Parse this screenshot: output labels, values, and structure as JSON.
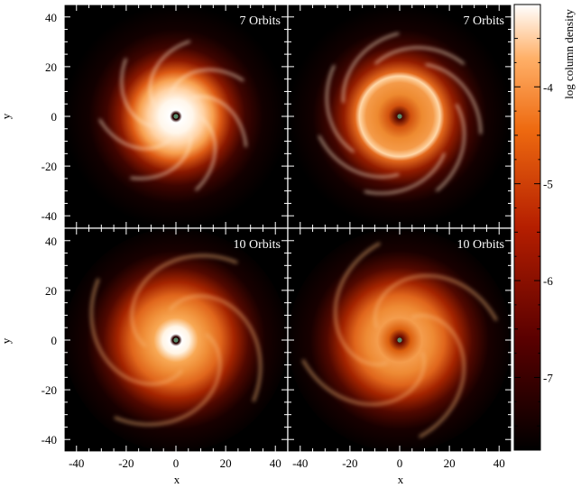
{
  "figure": {
    "panels": [
      {
        "label": "7 Orbits",
        "variant": "ring-bright-center"
      },
      {
        "label": "7 Orbits",
        "variant": "ring-dim-center"
      },
      {
        "label": "10 Orbits",
        "variant": "spiral-bright-center"
      },
      {
        "label": "10 Orbits",
        "variant": "spiral-dim-center"
      }
    ],
    "x_axis": {
      "label": "x",
      "ticks": [
        "-40",
        "-20",
        "0",
        "20",
        "40"
      ],
      "range": [
        -45,
        45
      ]
    },
    "y_axis": {
      "label": "y",
      "ticks": [
        "40",
        "20",
        "0",
        "-20",
        "-40"
      ],
      "range": [
        -45,
        45
      ]
    },
    "colorbar": {
      "label": "log column density",
      "ticks": [
        "-4",
        "-5",
        "-6",
        "-7"
      ],
      "range": [
        -7.75,
        -3.15
      ],
      "colors": [
        "#000000",
        "#5a0000",
        "#b51e00",
        "#ee6a10",
        "#ffb068",
        "#ffffff"
      ]
    }
  }
}
